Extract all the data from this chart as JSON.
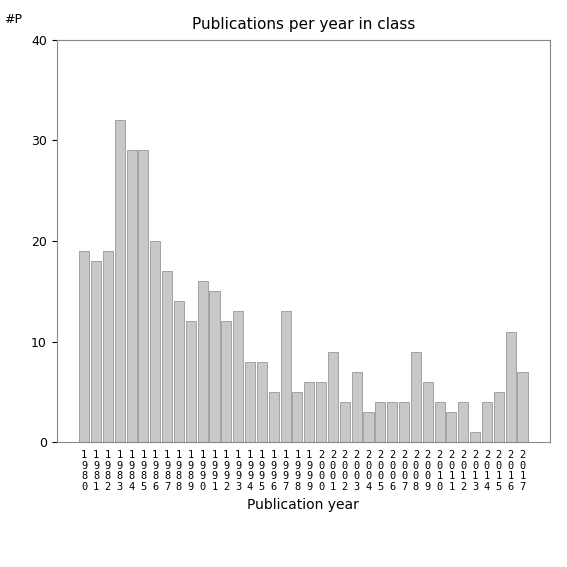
{
  "years": [
    1980,
    1981,
    1982,
    1983,
    1984,
    1985,
    1986,
    1987,
    1988,
    1989,
    1990,
    1991,
    1992,
    1993,
    1994,
    1995,
    1996,
    1997,
    1998,
    1999,
    2000,
    2001,
    2002,
    2003,
    2004,
    2005,
    2006,
    2007,
    2008,
    2009,
    2010,
    2011,
    2012,
    2013,
    2014,
    2015,
    2016,
    2017
  ],
  "values": [
    19,
    18,
    19,
    32,
    29,
    29,
    20,
    17,
    14,
    12,
    16,
    15,
    12,
    13,
    8,
    8,
    5,
    13,
    5,
    6,
    6,
    9,
    4,
    7,
    3,
    4,
    4,
    4,
    9,
    6,
    4,
    3,
    4,
    1,
    4,
    5,
    11,
    7
  ],
  "title": "Publications per year in class",
  "xlabel": "Publication year",
  "ylabel_annotation": "#P",
  "ylim": [
    0,
    40
  ],
  "yticks": [
    0,
    10,
    20,
    30,
    40
  ],
  "bar_color": "#c8c8c8",
  "bar_edgecolor": "#888888",
  "bg_color": "#ffffff"
}
